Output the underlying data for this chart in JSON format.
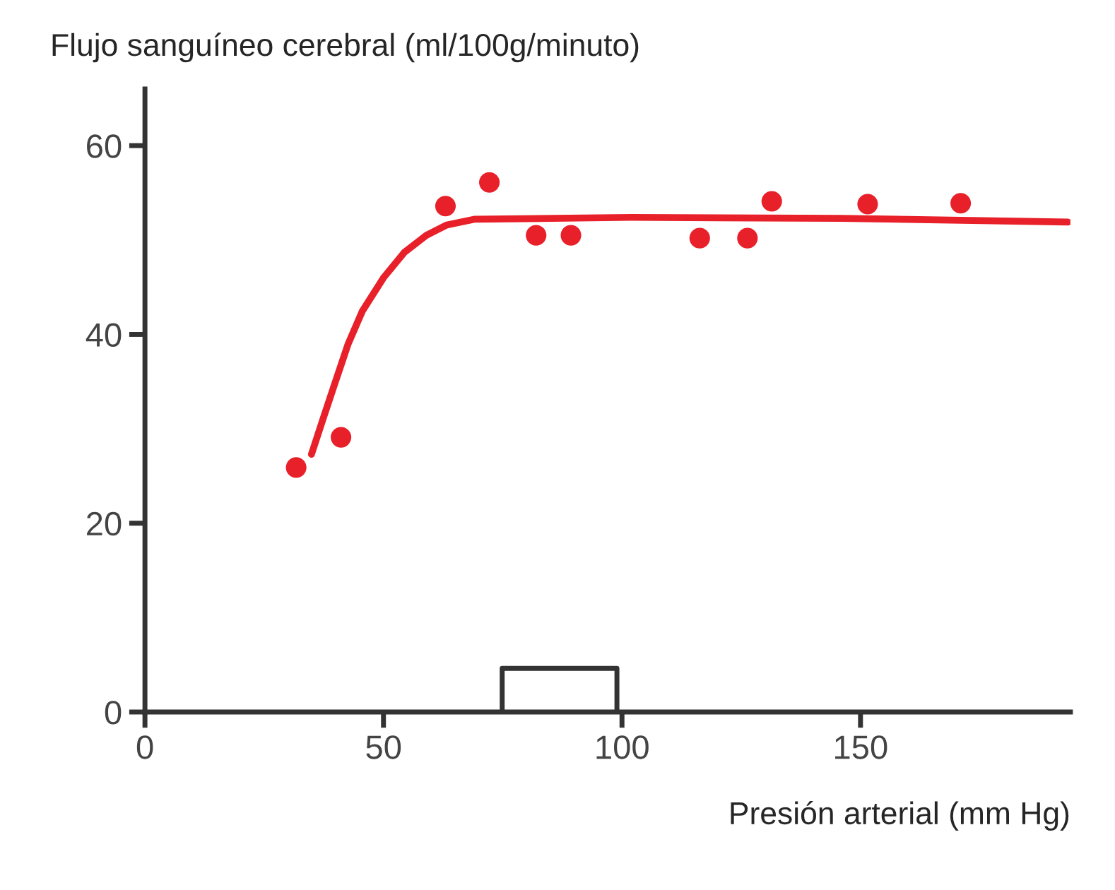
{
  "chart_data": {
    "type": "scatter",
    "ylabel": "Flujo sanguíneo cerebral (ml/100g/minuto)",
    "xlabel": "Presión arterial (mm Hg)",
    "xlim": [
      0,
      194
    ],
    "ylim": [
      0,
      66
    ],
    "xticks": [
      0,
      50,
      100,
      150
    ],
    "yticks": [
      0,
      20,
      40,
      60
    ],
    "grid": false,
    "legend": false,
    "series": [
      {
        "color": "#e8202a",
        "marker": "circle",
        "x": [
          31.7,
          41.1,
          63,
          72.2,
          82,
          89.3,
          116.3,
          126.3,
          131.4,
          151.5,
          171
        ],
        "values": [
          25.9,
          29.1,
          53.6,
          56.1,
          50.5,
          50.5,
          50.2,
          50.2,
          54.1,
          53.8,
          53.9
        ]
      },
      {
        "type": "line",
        "color": "#e8202a",
        "line_style": "solid",
        "x": [
          34.9,
          37.3,
          39.6,
          42.6,
          45.6,
          50,
          54.4,
          59,
          63.3,
          69,
          101.8,
          146,
          193.5
        ],
        "values": [
          27.3,
          31,
          34.5,
          39,
          42.5,
          46,
          48.7,
          50.5,
          51.6,
          52.2,
          52.4,
          52.3,
          51.9
        ]
      }
    ]
  }
}
